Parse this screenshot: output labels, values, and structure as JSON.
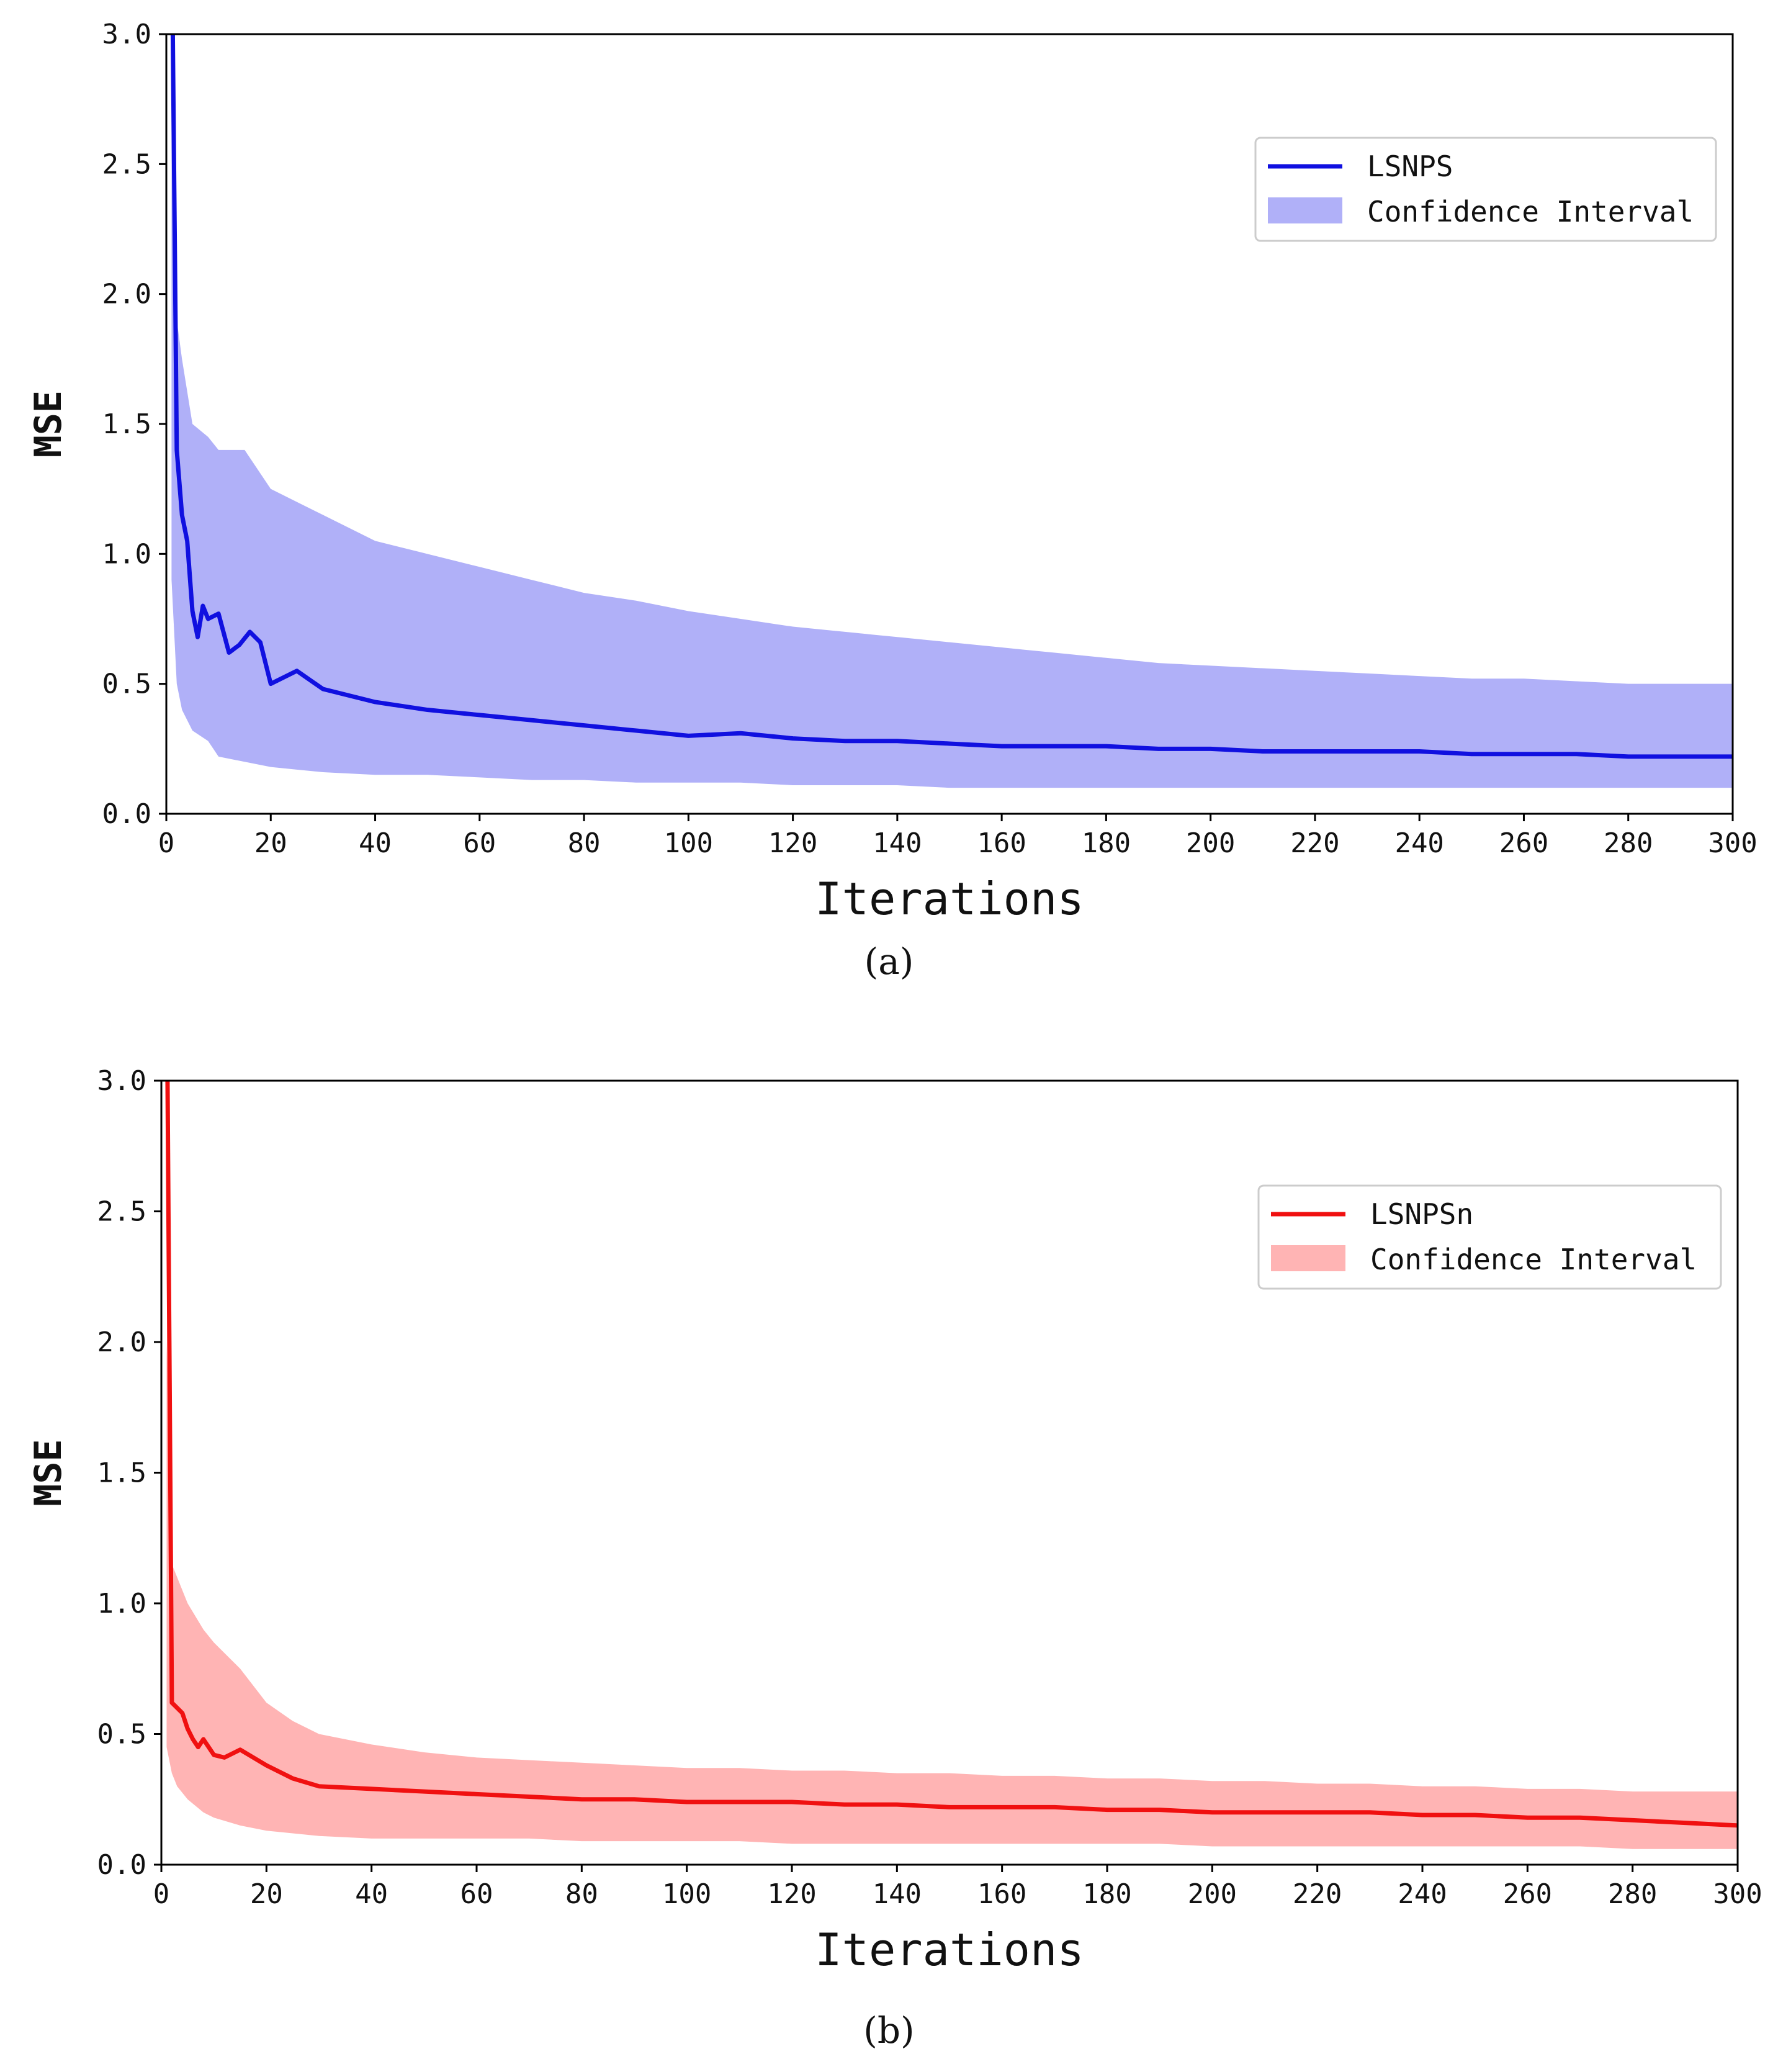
{
  "chart_data": [
    {
      "id": "a",
      "type": "line",
      "caption": "(a)",
      "xlabel": "Iterations",
      "ylabel": "MSE",
      "xlim": [
        0,
        300
      ],
      "ylim": [
        0,
        3.0
      ],
      "xticks": [
        0,
        20,
        40,
        60,
        80,
        100,
        120,
        140,
        160,
        180,
        200,
        220,
        240,
        260,
        280,
        300
      ],
      "yticks": [
        "0.0",
        "0.5",
        "1.0",
        "1.5",
        "2.0",
        "2.5",
        "3.0"
      ],
      "legend": {
        "location": "upper right",
        "line_label": "LSNPS",
        "band_label": "Confidence Interval"
      },
      "color_line": "#1010e0",
      "color_band": "#b0b0f8",
      "series": [
        {
          "name": "LSNPS",
          "x": [
            1,
            2,
            3,
            4,
            5,
            6,
            7,
            8,
            10,
            12,
            14,
            16,
            18,
            20,
            25,
            30,
            40,
            50,
            60,
            70,
            80,
            90,
            100,
            110,
            120,
            130,
            140,
            150,
            160,
            170,
            180,
            190,
            200,
            210,
            220,
            230,
            240,
            250,
            260,
            270,
            280,
            290,
            300
          ],
          "y": [
            3.5,
            1.4,
            1.15,
            1.05,
            0.78,
            0.68,
            0.8,
            0.75,
            0.77,
            0.62,
            0.65,
            0.7,
            0.66,
            0.5,
            0.55,
            0.48,
            0.43,
            0.4,
            0.38,
            0.36,
            0.34,
            0.32,
            0.3,
            0.31,
            0.29,
            0.28,
            0.28,
            0.27,
            0.26,
            0.26,
            0.26,
            0.25,
            0.25,
            0.24,
            0.24,
            0.24,
            0.24,
            0.23,
            0.23,
            0.23,
            0.22,
            0.22,
            0.22
          ]
        }
      ],
      "band": {
        "x": [
          1,
          2,
          3,
          5,
          8,
          10,
          15,
          20,
          25,
          30,
          40,
          50,
          60,
          70,
          80,
          90,
          100,
          110,
          120,
          130,
          140,
          150,
          160,
          170,
          180,
          190,
          200,
          210,
          220,
          230,
          240,
          250,
          260,
          270,
          280,
          290,
          300
        ],
        "upper": [
          3.2,
          1.9,
          1.75,
          1.5,
          1.45,
          1.4,
          1.4,
          1.25,
          1.2,
          1.15,
          1.05,
          1.0,
          0.95,
          0.9,
          0.85,
          0.82,
          0.78,
          0.75,
          0.72,
          0.7,
          0.68,
          0.66,
          0.64,
          0.62,
          0.6,
          0.58,
          0.57,
          0.56,
          0.55,
          0.54,
          0.53,
          0.52,
          0.52,
          0.51,
          0.5,
          0.5,
          0.5
        ],
        "lower": [
          0.9,
          0.5,
          0.4,
          0.32,
          0.28,
          0.22,
          0.2,
          0.18,
          0.17,
          0.16,
          0.15,
          0.15,
          0.14,
          0.13,
          0.13,
          0.12,
          0.12,
          0.12,
          0.11,
          0.11,
          0.11,
          0.1,
          0.1,
          0.1,
          0.1,
          0.1,
          0.1,
          0.1,
          0.1,
          0.1,
          0.1,
          0.1,
          0.1,
          0.1,
          0.1,
          0.1,
          0.1
        ]
      }
    },
    {
      "id": "b",
      "type": "line",
      "caption": "(b)",
      "xlabel": "Iterations",
      "ylabel": "MSE",
      "xlim": [
        0,
        300
      ],
      "ylim": [
        0,
        3.0
      ],
      "xticks": [
        0,
        20,
        40,
        60,
        80,
        100,
        120,
        140,
        160,
        180,
        200,
        220,
        240,
        260,
        280,
        300
      ],
      "yticks": [
        "0.0",
        "0.5",
        "1.0",
        "1.5",
        "2.0",
        "2.5",
        "3.0"
      ],
      "legend": {
        "location": "upper right",
        "line_label": "LSNPSn",
        "band_label": "Confidence Interval"
      },
      "color_line": "#f01010",
      "color_band": "#ffb4b4",
      "series": [
        {
          "name": "LSNPSn",
          "x": [
            1,
            2,
            3,
            4,
            5,
            6,
            7,
            8,
            10,
            12,
            15,
            20,
            25,
            30,
            40,
            50,
            60,
            70,
            80,
            90,
            100,
            110,
            120,
            130,
            140,
            150,
            160,
            170,
            180,
            190,
            200,
            210,
            220,
            230,
            240,
            250,
            260,
            270,
            280,
            290,
            300
          ],
          "y": [
            3.5,
            0.62,
            0.6,
            0.58,
            0.52,
            0.48,
            0.45,
            0.48,
            0.42,
            0.41,
            0.44,
            0.38,
            0.33,
            0.3,
            0.29,
            0.28,
            0.27,
            0.26,
            0.25,
            0.25,
            0.24,
            0.24,
            0.24,
            0.23,
            0.23,
            0.22,
            0.22,
            0.22,
            0.21,
            0.21,
            0.2,
            0.2,
            0.2,
            0.2,
            0.19,
            0.19,
            0.18,
            0.18,
            0.17,
            0.16,
            0.15
          ]
        }
      ],
      "band": {
        "x": [
          1,
          2,
          3,
          5,
          8,
          10,
          15,
          20,
          25,
          30,
          40,
          50,
          60,
          70,
          80,
          90,
          100,
          110,
          120,
          130,
          140,
          150,
          160,
          170,
          180,
          190,
          200,
          210,
          220,
          230,
          240,
          250,
          260,
          270,
          280,
          290,
          300
        ],
        "upper": [
          2.0,
          1.15,
          1.1,
          1.0,
          0.9,
          0.85,
          0.75,
          0.62,
          0.55,
          0.5,
          0.46,
          0.43,
          0.41,
          0.4,
          0.39,
          0.38,
          0.37,
          0.37,
          0.36,
          0.36,
          0.35,
          0.35,
          0.34,
          0.34,
          0.33,
          0.33,
          0.32,
          0.32,
          0.31,
          0.31,
          0.3,
          0.3,
          0.29,
          0.29,
          0.28,
          0.28,
          0.28
        ],
        "lower": [
          0.45,
          0.35,
          0.3,
          0.25,
          0.2,
          0.18,
          0.15,
          0.13,
          0.12,
          0.11,
          0.1,
          0.1,
          0.1,
          0.1,
          0.09,
          0.09,
          0.09,
          0.09,
          0.08,
          0.08,
          0.08,
          0.08,
          0.08,
          0.08,
          0.08,
          0.08,
          0.07,
          0.07,
          0.07,
          0.07,
          0.07,
          0.07,
          0.07,
          0.07,
          0.06,
          0.06,
          0.06
        ]
      }
    }
  ]
}
